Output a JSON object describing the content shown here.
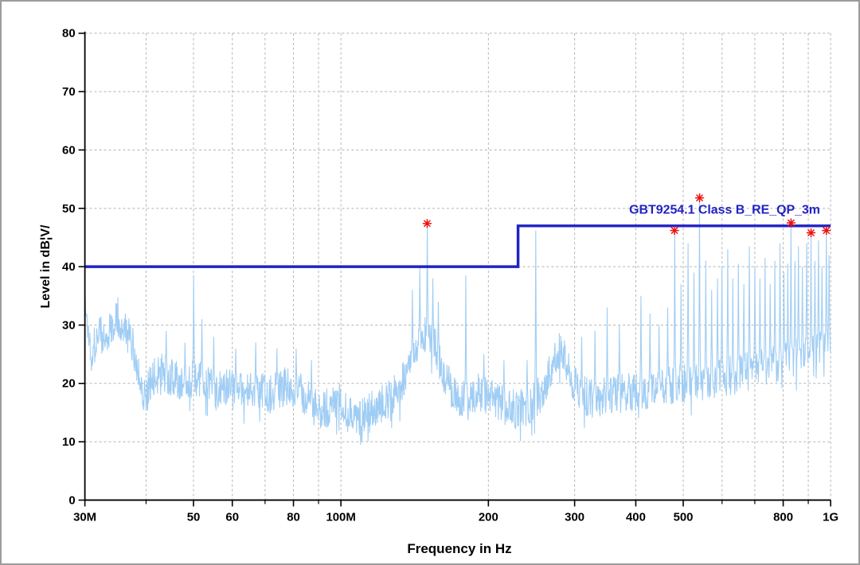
{
  "page": {
    "background": "#ffffff",
    "border_color": "#9b9b9b"
  },
  "chart_data": {
    "type": "line",
    "title": "",
    "xlabel": "Frequency in Hz",
    "ylabel": "Level in dB¦V/",
    "x_scale": "log",
    "x_range_mhz": [
      30,
      1000
    ],
    "ylim": [
      0,
      80
    ],
    "y_ticks": [
      0,
      10,
      20,
      30,
      40,
      50,
      60,
      70,
      80
    ],
    "x_major_ticks": [
      {
        "mhz": 30,
        "label": "30M"
      },
      {
        "mhz": 50,
        "label": "50"
      },
      {
        "mhz": 60,
        "label": "60"
      },
      {
        "mhz": 80,
        "label": "80"
      },
      {
        "mhz": 100,
        "label": "100M"
      },
      {
        "mhz": 200,
        "label": "200"
      },
      {
        "mhz": 300,
        "label": "300"
      },
      {
        "mhz": 400,
        "label": "400"
      },
      {
        "mhz": 500,
        "label": "500"
      },
      {
        "mhz": 800,
        "label": "800"
      },
      {
        "mhz": 1000,
        "label": "1G"
      }
    ],
    "x_minor_ticks_mhz": [
      40,
      70,
      90,
      600,
      700,
      900
    ],
    "grid": {
      "color": "#b4b4b4",
      "dash": "3 3",
      "vlines_mhz": [
        40,
        50,
        60,
        70,
        80,
        90,
        100,
        200,
        300,
        400,
        500,
        600,
        700,
        800,
        900,
        1000
      ],
      "hlines_db": [
        10,
        20,
        30,
        40,
        50,
        60,
        70,
        80
      ]
    },
    "limit_line": {
      "name": "GBT9254.1 Class B_RE_QP_3m",
      "color": "#2222c4",
      "width": 3.5,
      "points_mhz_db": [
        [
          30,
          40
        ],
        [
          230,
          40
        ],
        [
          230,
          47
        ],
        [
          1000,
          47
        ]
      ],
      "label_pos": {
        "x_mhz": 952,
        "db": 49.1
      }
    },
    "trace": {
      "color": "#a0cdf4",
      "samples": 1900,
      "noise": {
        "seed": 1337,
        "amplitude_db": 3.4,
        "dip_chance": 0.07,
        "dip_extra_db": 5
      },
      "envelope_mhz_db": [
        [
          30,
          33
        ],
        [
          31,
          25
        ],
        [
          32,
          29
        ],
        [
          33,
          27
        ],
        [
          34,
          30
        ],
        [
          35,
          32
        ],
        [
          36,
          29
        ],
        [
          37,
          28
        ],
        [
          38,
          25
        ],
        [
          39,
          20
        ],
        [
          40,
          17.5
        ],
        [
          41,
          21
        ],
        [
          43,
          22
        ],
        [
          45,
          21
        ],
        [
          47,
          20
        ],
        [
          50,
          21
        ],
        [
          53,
          20
        ],
        [
          56,
          19
        ],
        [
          60,
          19
        ],
        [
          64,
          18.5
        ],
        [
          68,
          19
        ],
        [
          72,
          18
        ],
        [
          76,
          19.5
        ],
        [
          80,
          19
        ],
        [
          84,
          18
        ],
        [
          88,
          16
        ],
        [
          92,
          15.5
        ],
        [
          96,
          16.5
        ],
        [
          100,
          17
        ],
        [
          105,
          15
        ],
        [
          110,
          14.5
        ],
        [
          115,
          15.5
        ],
        [
          120,
          16.5
        ],
        [
          126,
          17.5
        ],
        [
          132,
          19
        ],
        [
          138,
          23
        ],
        [
          144,
          27
        ],
        [
          150,
          28.5
        ],
        [
          156,
          26
        ],
        [
          162,
          22
        ],
        [
          168,
          19
        ],
        [
          175,
          17.5
        ],
        [
          182,
          17
        ],
        [
          190,
          18.5
        ],
        [
          200,
          18
        ],
        [
          210,
          16.5
        ],
        [
          220,
          16
        ],
        [
          230,
          15.5
        ],
        [
          240,
          16
        ],
        [
          250,
          17
        ],
        [
          258,
          19
        ],
        [
          266,
          22
        ],
        [
          274,
          25
        ],
        [
          282,
          25.5
        ],
        [
          290,
          23.5
        ],
        [
          298,
          20
        ],
        [
          310,
          18
        ],
        [
          325,
          17.5
        ],
        [
          340,
          17.5
        ],
        [
          360,
          18
        ],
        [
          380,
          18.5
        ],
        [
          400,
          18.5
        ],
        [
          425,
          19
        ],
        [
          450,
          19.5
        ],
        [
          475,
          19.5
        ],
        [
          500,
          20
        ],
        [
          530,
          20
        ],
        [
          560,
          20.5
        ],
        [
          600,
          21
        ],
        [
          640,
          21.5
        ],
        [
          680,
          22
        ],
        [
          720,
          22.5
        ],
        [
          760,
          23
        ],
        [
          800,
          23.5
        ],
        [
          840,
          24
        ],
        [
          880,
          25
        ],
        [
          920,
          25.5
        ],
        [
          960,
          26.5
        ],
        [
          1000,
          27
        ]
      ],
      "spikes_mhz_db": [
        [
          44,
          29
        ],
        [
          48,
          27
        ],
        [
          50,
          38.5
        ],
        [
          52,
          31
        ],
        [
          55,
          28
        ],
        [
          61,
          26
        ],
        [
          67,
          27
        ],
        [
          74,
          26
        ],
        [
          81,
          26
        ],
        [
          87,
          24
        ],
        [
          140,
          36
        ],
        [
          145,
          40
        ],
        [
          150,
          47.3
        ],
        [
          154,
          38
        ],
        [
          158,
          34
        ],
        [
          180,
          38.5
        ],
        [
          196,
          25
        ],
        [
          215,
          24
        ],
        [
          240,
          24
        ],
        [
          250,
          46.2
        ],
        [
          310,
          28
        ],
        [
          330,
          29
        ],
        [
          350,
          33
        ],
        [
          370,
          30
        ],
        [
          410,
          35
        ],
        [
          428,
          32
        ],
        [
          446,
          30
        ],
        [
          465,
          33
        ],
        [
          480,
          46.1
        ],
        [
          495,
          37
        ],
        [
          512,
          44
        ],
        [
          526,
          39
        ],
        [
          540,
          51.8
        ],
        [
          556,
          41
        ],
        [
          572,
          36
        ],
        [
          588,
          38
        ],
        [
          600,
          40
        ],
        [
          616,
          43
        ],
        [
          632,
          38
        ],
        [
          648,
          40.5
        ],
        [
          665,
          37
        ],
        [
          682,
          43.5
        ],
        [
          700,
          40
        ],
        [
          717,
          38
        ],
        [
          734,
          41.5
        ],
        [
          752,
          37
        ],
        [
          770,
          41
        ],
        [
          788,
          44
        ],
        [
          803,
          39
        ],
        [
          817,
          40.5
        ],
        [
          830,
          47.3
        ],
        [
          845,
          41
        ],
        [
          860,
          43.5
        ],
        [
          876,
          40
        ],
        [
          893,
          44
        ],
        [
          912,
          45.7
        ],
        [
          928,
          41
        ],
        [
          944,
          44.5
        ],
        [
          960,
          40
        ],
        [
          980,
          46.1
        ],
        [
          993,
          42
        ]
      ]
    },
    "markers": {
      "color": "#ee1010",
      "symbol": "asterisk",
      "points_mhz_db": [
        [
          150,
          47.4
        ],
        [
          480,
          46.2
        ],
        [
          540,
          51.8
        ],
        [
          830,
          47.5
        ],
        [
          912,
          45.8
        ],
        [
          980,
          46.2
        ]
      ]
    }
  }
}
